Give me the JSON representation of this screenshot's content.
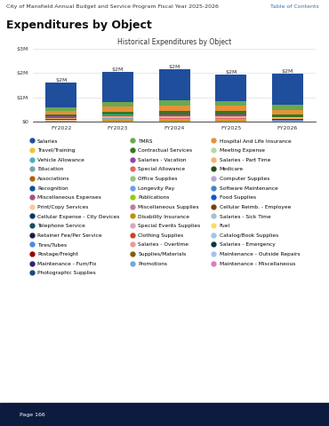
{
  "header": {
    "left": "City of Mansfield Annual Budget and Service Program Fiscal Year 2025-2026",
    "right": "Table of Contents"
  },
  "heading": "Expenditures by Object",
  "footer": "Page 166",
  "chart_data": {
    "type": "bar",
    "stacked": true,
    "title": "Historical Expenditures by Object",
    "categories": [
      "FY2022",
      "FY2023",
      "FY2024",
      "FY2025",
      "FY2026"
    ],
    "ylim": [
      0,
      3000000
    ],
    "yticks": [
      {
        "value": 0,
        "label": "$0"
      },
      {
        "value": 1000000,
        "label": "$1M"
      },
      {
        "value": 2000000,
        "label": "$2M"
      },
      {
        "value": 3000000,
        "label": "$3M"
      }
    ],
    "grid": true,
    "legend": "upper center",
    "total_labels": [
      "$2M",
      "$2M",
      "$2M",
      "$2M",
      "$2M"
    ],
    "series": [
      {
        "name": "Salaries",
        "color": "#1f4e9c",
        "values": [
          1000000,
          1250000,
          1300000,
          1100000,
          1300000
        ]
      },
      {
        "name": "TMRS",
        "color": "#6aa84f",
        "values": [
          150000,
          200000,
          210000,
          200000,
          200000
        ]
      },
      {
        "name": "Hospital And Life Insurance",
        "color": "#e69138",
        "values": [
          150000,
          190000,
          200000,
          190000,
          180000
        ]
      },
      {
        "name": "Travel/Training",
        "color": "#f1c232",
        "values": [
          20000,
          30000,
          30000,
          30000,
          25000
        ]
      },
      {
        "name": "Contractual Services",
        "color": "#38761d",
        "values": [
          60000,
          100000,
          120000,
          130000,
          90000
        ]
      },
      {
        "name": "Meeting Expense",
        "color": "#b6d7a8",
        "values": [
          5000,
          6000,
          6000,
          6000,
          5000
        ]
      },
      {
        "name": "Vehicle Allowance",
        "color": "#45b0c4",
        "values": [
          10000,
          10000,
          10000,
          10000,
          10000
        ]
      },
      {
        "name": "Salaries - Vacation",
        "color": "#8e44ad",
        "values": [
          40000,
          60000,
          60000,
          60000,
          0
        ]
      },
      {
        "name": "Salaries - Part Time",
        "color": "#f6b26b",
        "values": [
          50000,
          80000,
          90000,
          80000,
          60000
        ]
      },
      {
        "name": "Education",
        "color": "#76a5af",
        "values": [
          5000,
          5000,
          6000,
          6000,
          5000
        ]
      },
      {
        "name": "Special Allowance",
        "color": "#e06666",
        "values": [
          10000,
          10000,
          12000,
          12000,
          12000
        ]
      },
      {
        "name": "Medicare",
        "color": "#274e13",
        "values": [
          15000,
          20000,
          22000,
          20000,
          20000
        ]
      },
      {
        "name": "Associations",
        "color": "#b45f06",
        "values": [
          3000,
          3000,
          4000,
          4000,
          4000
        ]
      },
      {
        "name": "Office Supplies",
        "color": "#93c47d",
        "values": [
          4000,
          5000,
          5000,
          5000,
          5000
        ]
      },
      {
        "name": "Computer Supplies",
        "color": "#b4a7d6",
        "values": [
          3000,
          4000,
          4000,
          3000,
          3000
        ]
      },
      {
        "name": "Recognition",
        "color": "#0b5394",
        "values": [
          2000,
          2000,
          3000,
          3000,
          3000
        ]
      },
      {
        "name": "Longevity Pay",
        "color": "#6d9eeb",
        "values": [
          3000,
          4000,
          4000,
          4000,
          4000
        ]
      },
      {
        "name": "Software Maintenance",
        "color": "#3d85c6",
        "values": [
          8000,
          10000,
          12000,
          12000,
          12000
        ]
      },
      {
        "name": "Miscellaneous Expenses",
        "color": "#a64d79",
        "values": [
          2000,
          2000,
          2000,
          2000,
          2000
        ]
      },
      {
        "name": "Publications",
        "color": "#8fce00",
        "values": [
          1000,
          1000,
          1000,
          1000,
          1000
        ]
      },
      {
        "name": "Food Supplies",
        "color": "#1155cc",
        "values": [
          2000,
          3000,
          3000,
          3000,
          3000
        ]
      },
      {
        "name": "Print/Copy Services",
        "color": "#f9cb9c",
        "values": [
          2000,
          2000,
          2000,
          2000,
          2000
        ]
      },
      {
        "name": "Miscellaneous Supplies",
        "color": "#c27ba0",
        "values": [
          2000,
          2000,
          3000,
          3000,
          3000
        ]
      },
      {
        "name": "Cellular Reimb. - Employee",
        "color": "#783f04",
        "values": [
          2000,
          2000,
          2000,
          2000,
          2000
        ]
      },
      {
        "name": "Cellular Expense - City Devices",
        "color": "#073763",
        "values": [
          3000,
          3000,
          3000,
          3000,
          3000
        ]
      },
      {
        "name": "Disability Insurance",
        "color": "#bf9000",
        "values": [
          3000,
          4000,
          4000,
          4000,
          4000
        ]
      },
      {
        "name": "Salaries - Sick Time",
        "color": "#a2c4c9",
        "values": [
          10000,
          15000,
          15000,
          15000,
          0
        ]
      },
      {
        "name": "Telephone Service",
        "color": "#134f5c",
        "values": [
          2000,
          2000,
          2000,
          2000,
          2000
        ]
      },
      {
        "name": "Special Events Supplies",
        "color": "#d5a6bd",
        "values": [
          2000,
          3000,
          3000,
          3000,
          3000
        ]
      },
      {
        "name": "Fuel",
        "color": "#ffd966",
        "values": [
          2000,
          2000,
          2000,
          2000,
          2000
        ]
      },
      {
        "name": "Retainer Fee/Per Service",
        "color": "#20124d",
        "values": [
          3000,
          3000,
          3000,
          3000,
          3000
        ]
      },
      {
        "name": "Clothing Supplies",
        "color": "#cc4125",
        "values": [
          1000,
          1000,
          1000,
          1000,
          1000
        ]
      },
      {
        "name": "Catalog/Book Supplies",
        "color": "#9fc5e8",
        "values": [
          1000,
          1000,
          1000,
          1000,
          1000
        ]
      },
      {
        "name": "Tires/Tubes",
        "color": "#4a86e8",
        "values": [
          500,
          500,
          500,
          500,
          500
        ]
      },
      {
        "name": "Salaries - Overtime",
        "color": "#ea9999",
        "values": [
          5000,
          6000,
          6000,
          6000,
          6000
        ]
      },
      {
        "name": "Salaries - Emergency",
        "color": "#0c343d",
        "values": [
          2000,
          2000,
          2000,
          2000,
          0
        ]
      },
      {
        "name": "Postage/Freight",
        "color": "#990000",
        "values": [
          1000,
          1000,
          1000,
          1000,
          1000
        ]
      },
      {
        "name": "Supplies/Materials",
        "color": "#7f6000",
        "values": [
          2000,
          2000,
          2000,
          2000,
          2000
        ]
      },
      {
        "name": "Maintenance - Outside Repairs",
        "color": "#a4c2f4",
        "values": [
          1000,
          1000,
          1000,
          1000,
          1000
        ]
      },
      {
        "name": "Maintenance - Furn/Fix",
        "color": "#351c75",
        "values": [
          1000,
          1000,
          1000,
          1000,
          1000
        ]
      },
      {
        "name": "Promotions",
        "color": "#6fa8dc",
        "values": [
          2000,
          2000,
          2000,
          2000,
          2000
        ]
      },
      {
        "name": "Maintenance - Miscellaneous",
        "color": "#e377c2",
        "values": [
          1000,
          1000,
          1000,
          1000,
          1000
        ]
      },
      {
        "name": "Photographic Supplies",
        "color": "#1c4587",
        "values": [
          500,
          500,
          500,
          500,
          500
        ]
      }
    ]
  }
}
